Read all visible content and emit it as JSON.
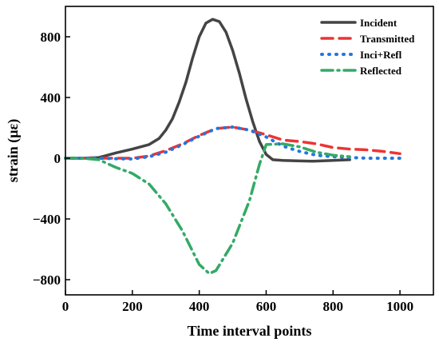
{
  "chart_data": {
    "type": "line",
    "title": "",
    "xlabel": "Time interval points",
    "ylabel": "strain (με)",
    "xlim": [
      0,
      1100
    ],
    "ylim": [
      -900,
      1000
    ],
    "x_ticks": [
      0,
      200,
      400,
      600,
      800,
      1000
    ],
    "y_ticks": [
      -800,
      -400,
      0,
      400,
      800
    ],
    "legend_position": "top-right",
    "grid": false,
    "series": [
      {
        "name": "Incident",
        "color": "#444444",
        "style": "solid",
        "x": [
          0,
          50,
          100,
          150,
          200,
          250,
          280,
          300,
          320,
          340,
          360,
          380,
          400,
          420,
          440,
          460,
          480,
          500,
          520,
          540,
          560,
          580,
          600,
          620,
          650,
          700,
          740,
          800,
          850
        ],
        "y": [
          0,
          0,
          5,
          35,
          60,
          90,
          130,
          185,
          260,
          370,
          500,
          660,
          800,
          890,
          915,
          900,
          830,
          710,
          560,
          390,
          240,
          110,
          25,
          -10,
          -15,
          -18,
          -20,
          -15,
          -10
        ]
      },
      {
        "name": "Transmitted",
        "color": "#ee3333",
        "style": "dash",
        "x": [
          0,
          100,
          150,
          200,
          250,
          300,
          350,
          400,
          450,
          500,
          550,
          600,
          650,
          700,
          750,
          800,
          850,
          900,
          950,
          1000
        ],
        "y": [
          0,
          0,
          0,
          0,
          15,
          50,
          95,
          150,
          195,
          205,
          185,
          155,
          120,
          110,
          95,
          70,
          60,
          55,
          45,
          30
        ]
      },
      {
        "name": "Inci+Refl",
        "color": "#2277dd",
        "style": "dot",
        "x": [
          0,
          100,
          150,
          200,
          250,
          300,
          350,
          400,
          450,
          500,
          550,
          600,
          650,
          700,
          750,
          800,
          850,
          900,
          950,
          1000
        ],
        "y": [
          0,
          0,
          -3,
          -5,
          10,
          40,
          90,
          145,
          195,
          205,
          185,
          140,
          80,
          45,
          20,
          10,
          5,
          0,
          0,
          0
        ]
      },
      {
        "name": "Reflected",
        "color": "#33aa66",
        "style": "dashdot",
        "x": [
          0,
          50,
          100,
          150,
          200,
          250,
          300,
          350,
          400,
          430,
          450,
          500,
          550,
          580,
          600,
          650,
          700,
          750,
          800,
          850
        ],
        "y": [
          0,
          0,
          -10,
          -60,
          -100,
          -170,
          -300,
          -480,
          -700,
          -760,
          -740,
          -560,
          -280,
          -40,
          90,
          95,
          75,
          40,
          20,
          10
        ]
      }
    ]
  }
}
